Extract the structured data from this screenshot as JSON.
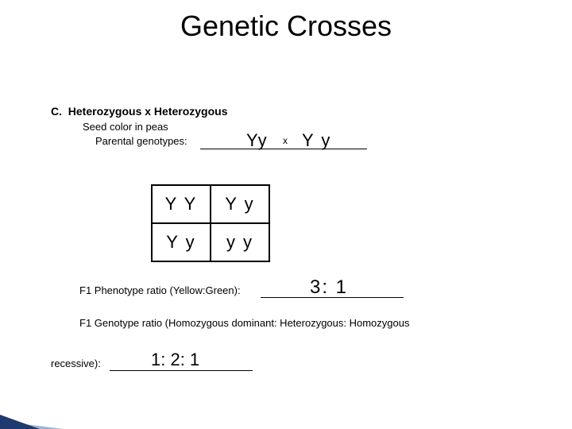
{
  "title": "Genetic Crosses",
  "section": {
    "letter": "C.",
    "heading": "Heterozygous x Heterozygous",
    "subtitle": "Seed color in peas",
    "parental_label": "Parental genotypes:",
    "parent1": "Yy",
    "cross_symbol": "x",
    "parent2": "Y y"
  },
  "punnett": {
    "rows": [
      [
        "Y Y",
        "Y y"
      ],
      [
        "Y y",
        "y y"
      ]
    ]
  },
  "f1_phenotype": {
    "label": "F1 Phenotype ratio (Yellow:Green):",
    "value": "3: 1"
  },
  "f1_genotype": {
    "label": "F1 Genotype ratio (Homozygous dominant: Heterozygous: Homozygous",
    "label2": "recessive):",
    "value": "1: 2: 1"
  },
  "styling": {
    "title_fontsize": 36,
    "body_fontsize": 13,
    "handwriting_fontsize": 22,
    "page_bg": "#ffffff",
    "text_color": "#000000",
    "corner_color": "#1f3a6e",
    "punnett_cell_w": 74,
    "punnett_cell_h": 48,
    "punnett_border": 2
  }
}
